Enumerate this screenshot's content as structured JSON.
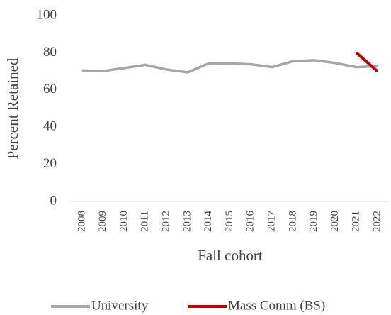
{
  "chart_data": {
    "type": "line",
    "x_label": "Fall cohort",
    "y_label": "Percent Retained",
    "categories": [
      "2008",
      "2009",
      "2010",
      "2011",
      "2012",
      "2013",
      "2014",
      "2015",
      "2016",
      "2017",
      "2018",
      "2019",
      "2020",
      "2021",
      "2022"
    ],
    "series": [
      {
        "name": "University",
        "color": "#a6a6a6",
        "values": [
          70.5,
          70.2,
          71.8,
          73.5,
          71,
          69.5,
          74.3,
          74.3,
          73.8,
          72.3,
          75.5,
          76,
          74.5,
          72.3,
          72.8
        ]
      },
      {
        "name": "Mass Comm (BS)",
        "color": "#c00000",
        "values": [
          null,
          null,
          null,
          null,
          null,
          null,
          null,
          null,
          null,
          null,
          null,
          null,
          null,
          80,
          70
        ]
      }
    ],
    "ylim": [
      0,
      100
    ],
    "yticks": [
      0,
      20,
      40,
      60,
      80,
      100
    ],
    "grid": false,
    "legend": "bottom"
  }
}
